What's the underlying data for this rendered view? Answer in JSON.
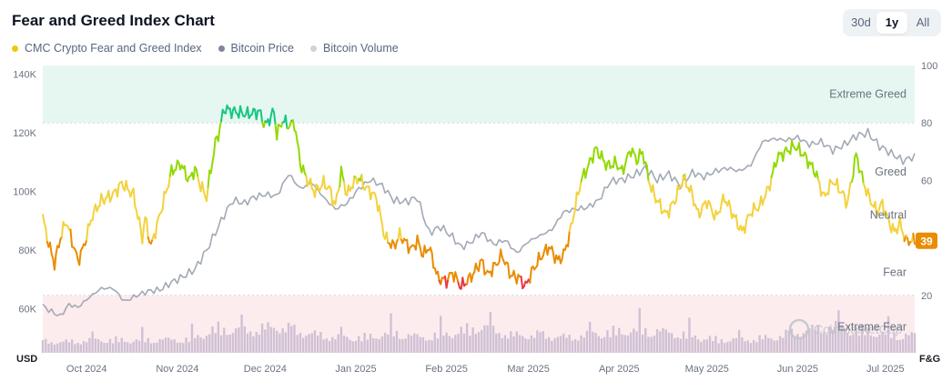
{
  "header": {
    "title": "Fear and Greed Index Chart"
  },
  "range_tabs": [
    {
      "label": "30d",
      "active": false
    },
    {
      "label": "1y",
      "active": true
    },
    {
      "label": "All",
      "active": false
    }
  ],
  "watermark": "CoinMarketCap",
  "chart_data": {
    "type": "line",
    "title": "Fear and Greed Index Chart",
    "legend_placement": "top-left",
    "grid": false,
    "series": [
      {
        "name": "CMC Crypto Fear and Greed Index",
        "color": "#f0c808",
        "axis": "right"
      },
      {
        "name": "Bitcoin Price",
        "color": "#9aa1b0",
        "axis": "left"
      },
      {
        "name": "Bitcoin Volume",
        "color": "#cfc1d4",
        "axis": "bars"
      }
    ],
    "left_axis": {
      "unit_label": "USD",
      "ticks": [
        "140K",
        "120K",
        "100K",
        "80K",
        "60K"
      ],
      "tick_values": [
        140000,
        120000,
        100000,
        80000,
        60000
      ],
      "range": [
        45000,
        143000
      ]
    },
    "right_axis": {
      "unit_label": "F&G",
      "ticks": [
        "100",
        "80",
        "60",
        "20"
      ],
      "tick_values": [
        100,
        80,
        60,
        20
      ],
      "range": [
        0,
        100
      ]
    },
    "x_ticks": [
      "Oct 2024",
      "Nov 2024",
      "Dec 2024",
      "Jan 2025",
      "Feb 2025",
      "Mar 2025",
      "Apr 2025",
      "May 2025",
      "Jun 2025",
      "Jul 2025"
    ],
    "x_range_days": [
      0,
      298
    ],
    "zones": [
      {
        "label": "Extreme Greed",
        "from": 80,
        "to": 100,
        "color": "#e6f7f1"
      },
      {
        "label": "Greed",
        "from": 60,
        "to": 80,
        "color": ""
      },
      {
        "label": "Neutral",
        "from": 40,
        "to": 60,
        "color": ""
      },
      {
        "label": "Fear",
        "from": 20,
        "to": 40,
        "color": ""
      },
      {
        "label": "Extreme Fear",
        "from": 0,
        "to": 20,
        "color": "#fdecee"
      }
    ],
    "current_value": "39",
    "fear_greed": {
      "days": [
        0,
        2,
        4,
        6,
        8,
        12,
        14,
        17,
        20,
        24,
        27,
        31,
        34,
        35,
        37,
        40,
        44,
        47,
        50,
        52,
        54,
        56,
        57,
        59,
        60,
        62,
        65,
        70,
        74,
        76,
        79,
        80,
        82,
        84,
        86,
        88,
        90,
        93,
        96,
        98,
        100,
        102,
        104,
        106,
        108,
        110,
        114,
        117,
        120,
        122,
        126,
        128,
        130,
        132,
        135,
        138,
        140,
        143,
        146,
        148,
        150,
        152,
        155,
        157,
        160,
        163,
        165,
        167,
        170,
        173,
        176,
        178,
        180,
        182,
        184,
        186,
        189,
        191,
        193,
        196,
        198,
        201,
        203,
        205,
        207,
        208,
        210,
        213,
        216,
        219,
        222,
        224,
        227,
        230,
        233,
        236,
        239,
        242,
        245,
        248,
        251,
        254,
        257,
        258,
        260,
        262,
        264,
        267,
        270,
        273,
        275,
        278,
        280,
        282,
        285,
        287,
        289,
        291,
        293,
        295,
        298
      ],
      "values": [
        47,
        38,
        31,
        40,
        46,
        32,
        37,
        48,
        53,
        55,
        59,
        55,
        40,
        47,
        37,
        48,
        63,
        66,
        60,
        64,
        58,
        54,
        61,
        73,
        76,
        85,
        84,
        83,
        84,
        79,
        84,
        76,
        81,
        79,
        80,
        66,
        61,
        56,
        59,
        57,
        51,
        63,
        55,
        59,
        61,
        58,
        54,
        40,
        37,
        41,
        36,
        39,
        34,
        37,
        26,
        25,
        28,
        23,
        26,
        29,
        32,
        27,
        31,
        34,
        27,
        26,
        23,
        28,
        33,
        37,
        32,
        34,
        41,
        51,
        60,
        64,
        71,
        68,
        65,
        66,
        63,
        71,
        67,
        70,
        61,
        57,
        53,
        48,
        53,
        61,
        55,
        48,
        53,
        47,
        54,
        48,
        42,
        49,
        51,
        57,
        68,
        70,
        72,
        71,
        69,
        66,
        63,
        54,
        60,
        56,
        52,
        69,
        61,
        55,
        49,
        52,
        46,
        42,
        45,
        39,
        39
      ]
    },
    "bitcoin_price": {
      "days": [
        0,
        3,
        6,
        9,
        12,
        16,
        20,
        24,
        28,
        32,
        36,
        40,
        44,
        48,
        52,
        56,
        59,
        62,
        65,
        69,
        72,
        76,
        80,
        84,
        88,
        92,
        96,
        100,
        104,
        108,
        112,
        116,
        120,
        124,
        128,
        132,
        136,
        140,
        143,
        146,
        150,
        154,
        158,
        162,
        166,
        170,
        174,
        178,
        182,
        186,
        190,
        194,
        198,
        202,
        206,
        210,
        214,
        218,
        222,
        226,
        230,
        234,
        238,
        242,
        246,
        250,
        254,
        258,
        262,
        266,
        270,
        274,
        278,
        282,
        286,
        290,
        294,
        298
      ],
      "values": [
        61000,
        59000,
        57500,
        61500,
        60500,
        64000,
        67000,
        67000,
        62500,
        64500,
        66000,
        66500,
        69000,
        71000,
        73500,
        80000,
        86000,
        92000,
        97000,
        96000,
        98000,
        99000,
        98500,
        106000,
        101000,
        103000,
        98000,
        94000,
        96000,
        101000,
        104000,
        102000,
        97000,
        96500,
        98000,
        86000,
        88000,
        84500,
        81000,
        82500,
        86000,
        82000,
        83500,
        79000,
        83000,
        85000,
        87000,
        93000,
        94000,
        94500,
        97000,
        103500,
        104000,
        105500,
        108000,
        104000,
        106000,
        102000,
        106500,
        105000,
        107000,
        108000,
        107000,
        109000,
        117000,
        118000,
        117500,
        118500,
        116000,
        117000,
        114000,
        116000,
        119000,
        120000,
        115500,
        113000,
        110500,
        112000
      ]
    },
    "bitcoin_volume": {
      "note": "",
      "days": [
        0,
        10,
        20,
        30,
        40,
        50,
        60,
        70,
        80,
        90,
        100,
        110,
        120,
        130,
        140,
        150,
        160,
        170,
        180,
        190,
        200,
        210,
        220,
        230,
        240,
        250,
        260,
        270,
        280,
        290,
        298
      ],
      "values": [
        0.25,
        0.25,
        0.3,
        0.28,
        0.3,
        0.3,
        0.55,
        0.5,
        0.6,
        0.45,
        0.35,
        0.35,
        0.45,
        0.35,
        0.45,
        0.6,
        0.4,
        0.4,
        0.35,
        0.45,
        0.5,
        0.5,
        0.4,
        0.3,
        0.3,
        0.35,
        0.5,
        0.6,
        0.5,
        0.4,
        0.4
      ]
    }
  }
}
